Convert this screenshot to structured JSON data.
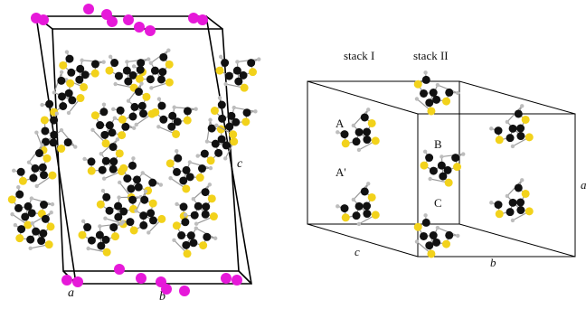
{
  "panel_left": {
    "axis_a": "a",
    "axis_b": "b",
    "axis_c": "c"
  },
  "panel_right": {
    "stack_1": "stack I",
    "stack_2": "stack II",
    "molecule_A": "A",
    "molecule_A_prime": "A'",
    "molecule_B": "B",
    "molecule_C": "C",
    "axis_c": "c",
    "axis_b": "b",
    "axis_a": "a"
  },
  "colors": {
    "carbon": "#111111",
    "sulfur": "#f2d21b",
    "hydrogen": "#bdbdbd",
    "metal": "#e619d9",
    "cell_line": "#000000",
    "bond": "#9a9a9a"
  }
}
